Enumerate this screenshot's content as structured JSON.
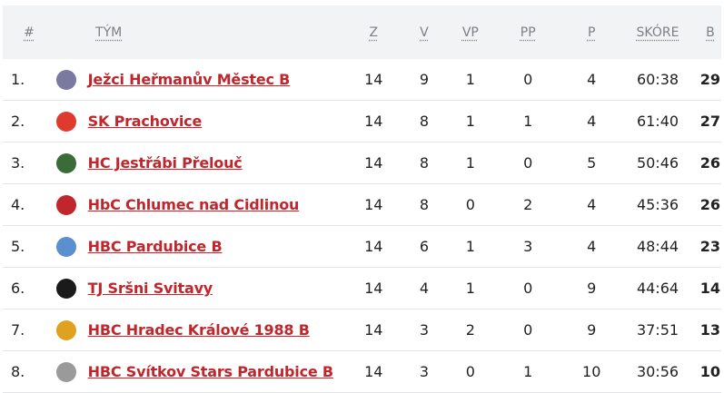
{
  "headers": {
    "rank": "#",
    "team": "TÝM",
    "z": "Z",
    "v": "V",
    "vp": "VP",
    "pp": "PP",
    "p": "P",
    "score": "SKÓRE",
    "b": "B"
  },
  "rows": [
    {
      "rank": "1.",
      "team": "Ježci Heřmanův Městec B",
      "logo_color": "#7a7aa0",
      "z": "14",
      "v": "9",
      "vp": "1",
      "pp": "0",
      "p": "4",
      "score": "60:38",
      "b": "29"
    },
    {
      "rank": "2.",
      "team": "SK Prachovice",
      "logo_color": "#e03a2f",
      "z": "14",
      "v": "8",
      "vp": "1",
      "pp": "1",
      "p": "4",
      "score": "61:40",
      "b": "27"
    },
    {
      "rank": "3.",
      "team": "HC Jestřábi Přelouč",
      "logo_color": "#3c6b3a",
      "z": "14",
      "v": "8",
      "vp": "1",
      "pp": "0",
      "p": "5",
      "score": "50:46",
      "b": "26"
    },
    {
      "rank": "4.",
      "team": "HbC Chlumec nad Cidlinou",
      "logo_color": "#c0262c",
      "z": "14",
      "v": "8",
      "vp": "0",
      "pp": "2",
      "p": "4",
      "score": "45:36",
      "b": "26"
    },
    {
      "rank": "5.",
      "team": "HBC Pardubice B",
      "logo_color": "#5a8fd0",
      "z": "14",
      "v": "6",
      "vp": "1",
      "pp": "3",
      "p": "4",
      "score": "48:44",
      "b": "23"
    },
    {
      "rank": "6.",
      "team": "TJ Sršni Svitavy",
      "logo_color": "#1a1a1a",
      "z": "14",
      "v": "4",
      "vp": "1",
      "pp": "0",
      "p": "9",
      "score": "44:64",
      "b": "14"
    },
    {
      "rank": "7.",
      "team": "HBC Hradec Králové 1988 B",
      "logo_color": "#e0a020",
      "z": "14",
      "v": "3",
      "vp": "2",
      "pp": "0",
      "p": "9",
      "score": "37:51",
      "b": "13"
    },
    {
      "rank": "8.",
      "team": "HBC Svítkov Stars Pardubice B",
      "logo_color": "#9a9a9a",
      "z": "14",
      "v": "3",
      "vp": "0",
      "pp": "1",
      "p": "10",
      "score": "30:56",
      "b": "10"
    }
  ]
}
